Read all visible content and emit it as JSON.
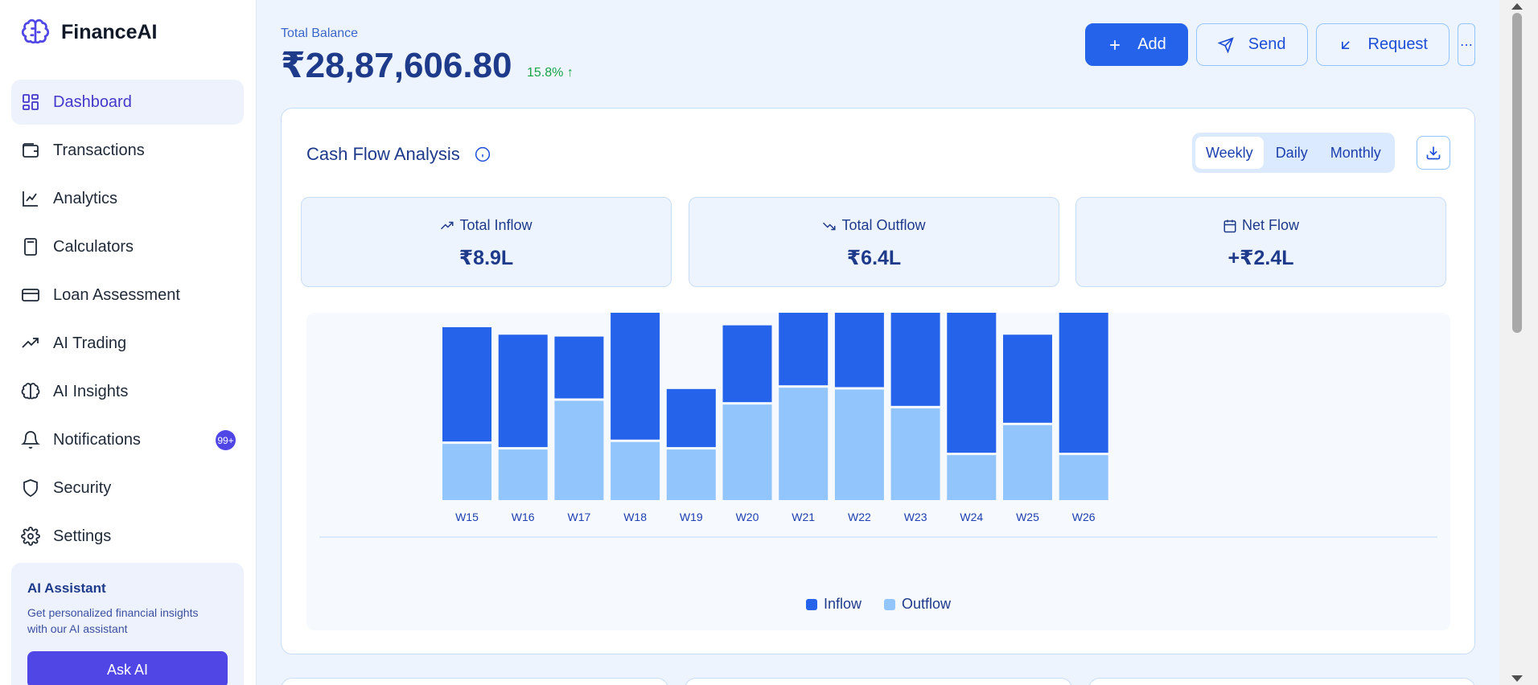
{
  "brand": {
    "name": "FinanceAI",
    "icon": "brain-icon"
  },
  "sidebar": {
    "items": [
      {
        "label": "Dashboard",
        "icon": "dashboard-icon",
        "active": true
      },
      {
        "label": "Transactions",
        "icon": "wallet-icon"
      },
      {
        "label": "Analytics",
        "icon": "line-chart-icon"
      },
      {
        "label": "Calculators",
        "icon": "calculator-icon"
      },
      {
        "label": "Loan Assessment",
        "icon": "credit-card-icon"
      },
      {
        "label": "AI Trading",
        "icon": "trending-up-icon"
      },
      {
        "label": "AI Insights",
        "icon": "brain-icon"
      },
      {
        "label": "Notifications",
        "icon": "bell-icon",
        "badge": "99+"
      },
      {
        "label": "Security",
        "icon": "shield-icon"
      },
      {
        "label": "Settings",
        "icon": "gear-icon"
      }
    ],
    "assistant": {
      "title": "AI Assistant",
      "description": "Get personalized financial insights with our AI assistant",
      "button": "Ask AI"
    }
  },
  "header": {
    "balance_label": "Total Balance",
    "balance_value": "₹28,87,606.80",
    "balance_change": "15.8% ↑",
    "actions": {
      "add": "Add",
      "send": "Send",
      "request": "Request",
      "more": "⋯"
    }
  },
  "card": {
    "title": "Cash Flow Analysis",
    "periods": [
      "Weekly",
      "Daily",
      "Monthly"
    ],
    "active_period": "Weekly",
    "stats": {
      "inflow_label": "Total Inflow",
      "inflow_value": "₹8.9L",
      "outflow_label": "Total Outflow",
      "outflow_value": "₹6.4L",
      "net_label": "Net Flow",
      "net_value": "+₹2.4L"
    }
  },
  "colors": {
    "inflow": "#2563eb",
    "outflow": "#93c5fd",
    "accent": "#4f46e5"
  },
  "chart_data": {
    "type": "bar",
    "stacked": true,
    "categories": [
      "W15",
      "W16",
      "W17",
      "W18",
      "W19",
      "W20",
      "W21",
      "W22",
      "W23",
      "W24",
      "W25",
      "W26"
    ],
    "series": [
      {
        "name": "Outflow",
        "values": [
          30,
          27,
          53,
          31,
          27,
          51,
          60,
          59,
          49,
          24,
          40,
          24
        ]
      },
      {
        "name": "Inflow",
        "values": [
          61,
          60,
          33,
          68,
          31,
          41,
          39,
          40,
          51,
          75,
          47,
          76
        ]
      }
    ],
    "legend": [
      "Inflow",
      "Outflow"
    ],
    "legend_position": "bottom",
    "ylim": [
      0,
      100
    ]
  }
}
